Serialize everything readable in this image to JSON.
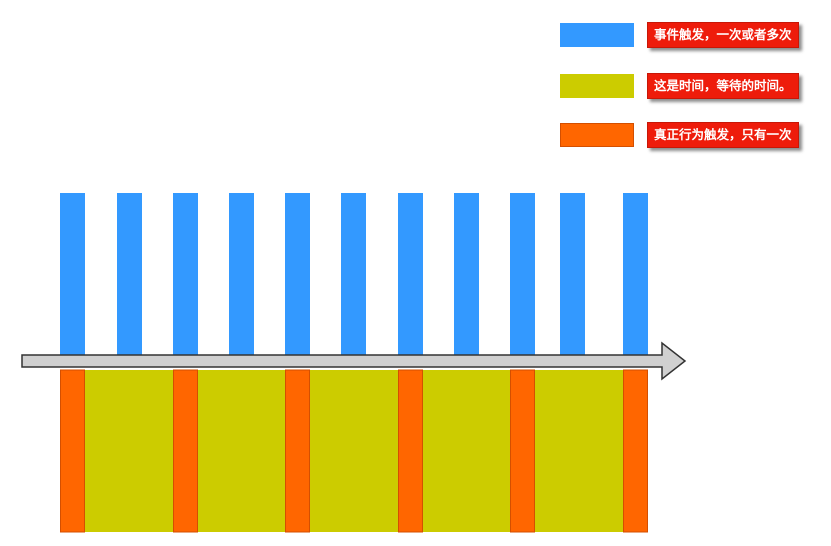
{
  "colors": {
    "event": "#3399ff",
    "wait": "#cccc00",
    "action": "#ff6600",
    "label_bg": "#ee1c0b",
    "arrow_fill": "#d0d0d0",
    "arrow_stroke": "#333333"
  },
  "legend": {
    "items": [
      {
        "key": "event",
        "label": "事件触发，一次或者多次"
      },
      {
        "key": "wait",
        "label": "这是时间，等待的时间。"
      },
      {
        "key": "action",
        "label": "真正行为触发，只有一次"
      }
    ]
  },
  "diagram": {
    "event_bar_count": 11,
    "action_bar_count": 6,
    "wait_segment_count": 5
  }
}
